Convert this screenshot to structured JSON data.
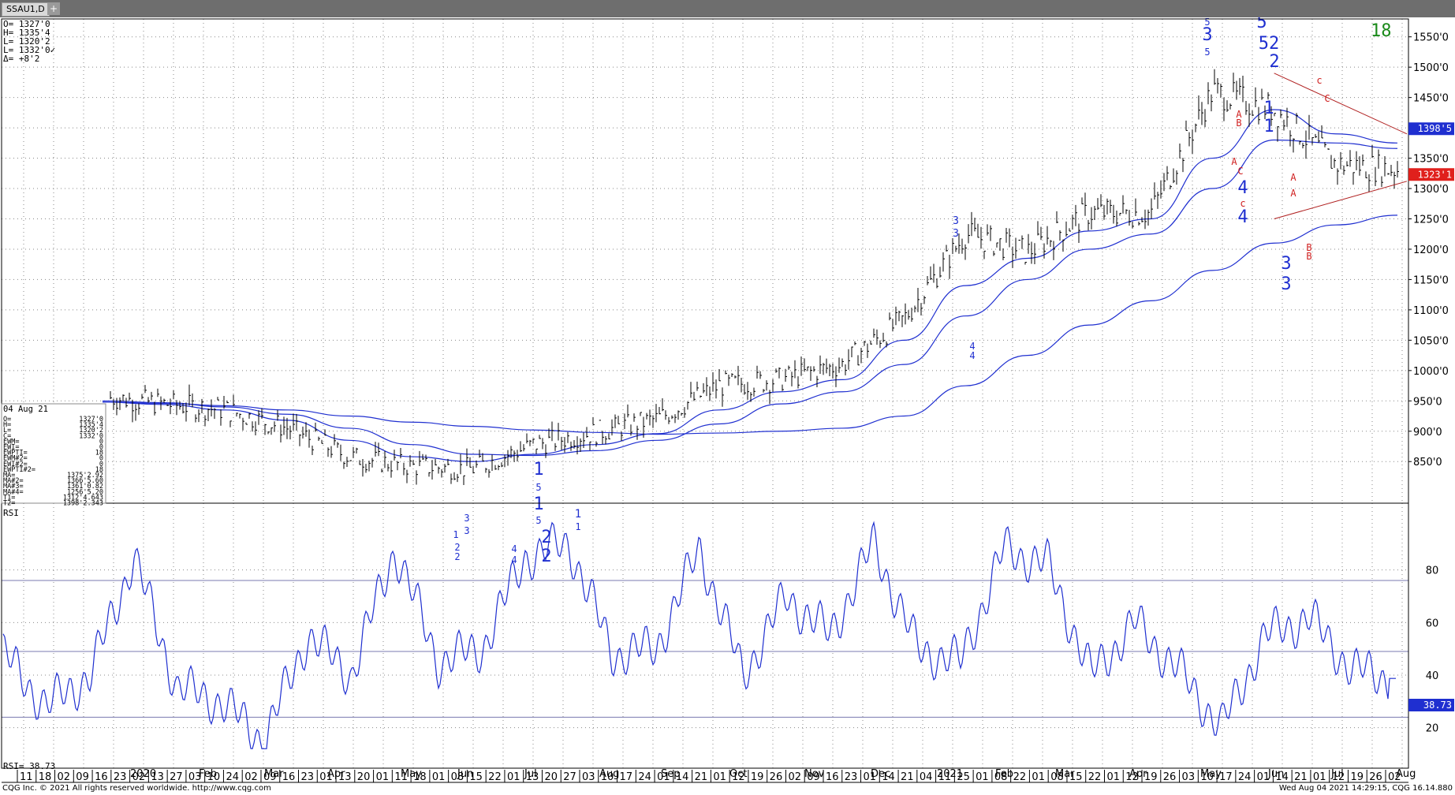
{
  "tab": {
    "label": "SSAU1,D",
    "add": "+"
  },
  "quote": [
    "O=  1327'0",
    "H=  1335'4",
    "L=  1320'2",
    "L=  1332'0✓",
    "Δ=    +8'2"
  ],
  "counter": "18",
  "databox": {
    "date": "04 Aug 21",
    "rows": [
      [
        "O=",
        "1327'0"
      ],
      [
        "H=",
        "1335'4"
      ],
      [
        "L=",
        "1320'2"
      ],
      [
        "C=",
        "1332'0"
      ],
      [
        "EWM=",
        "0"
      ],
      [
        "EWI=",
        "0"
      ],
      [
        "EWPTI=",
        "18"
      ],
      [
        "EWM#2=",
        "0"
      ],
      [
        "EWI#2=",
        "0"
      ],
      [
        "EWPTI#2=",
        "18"
      ],
      [
        "MA=",
        "1375'2.92"
      ],
      [
        "MA#2=",
        "1366'5.60"
      ],
      [
        "MA#3=",
        "1361'0.82"
      ],
      [
        "MA#4=",
        "1256'5.20"
      ],
      [
        "T1=",
        "1312'4.643"
      ],
      [
        "T2=",
        "1398'2.343"
      ]
    ]
  },
  "badges": [
    {
      "text": "1398'5",
      "price": 1398.5,
      "color": "#1f2fd0"
    },
    {
      "text": "1323'1",
      "price": 1323.1,
      "color": "#e0201c"
    }
  ],
  "rsi_label": "RSI",
  "rsi_value_label": "RSI=   38.73",
  "rsi_badge": "38.73",
  "footer": {
    "left": "CQG Inc. © 2021 All rights reserved worldwide. http://www.cqg.com",
    "right": "Wed Aug 04 2021 14:29:15, CQG 16.14.880"
  },
  "colors": {
    "ma": "#1f2fd0",
    "trend": "#b02020",
    "wave": "#1f2fd0",
    "abc": "#d02020",
    "counter": "#1a8a1a"
  },
  "chart_data": [
    {
      "type": "line",
      "title": "",
      "xlabel": "",
      "ylabel": "",
      "ylim": [
        800,
        1560
      ],
      "yticks": [
        850,
        900,
        950,
        1000,
        1050,
        1100,
        1150,
        1200,
        1250,
        1300,
        1350,
        1400,
        1450,
        1500,
        1550
      ],
      "ytick_labels": [
        "850'0",
        "900'0",
        "950'0",
        "1000'0",
        "1050'0",
        "1100'0",
        "1150'0",
        "1200'0",
        "1250'0",
        "1300'0",
        "1350'0",
        "1400'0",
        "1450'0",
        "1500'0",
        "1550'0"
      ],
      "x_month_labels": [
        "2020",
        "Feb",
        "Mar",
        "Apr",
        "May",
        "Jun",
        "Jul",
        "Aug",
        "Sep",
        "Oct",
        "Nov",
        "Dec",
        "2021",
        "Feb",
        "Mar",
        "Apr",
        "May",
        "Jun",
        "Jul",
        "Aug"
      ],
      "x_day_labels": [
        "11",
        "18",
        "02",
        "09",
        "16",
        "23",
        "02",
        "13",
        "27",
        "03",
        "10",
        "24",
        "02",
        "09",
        "16",
        "23",
        "01",
        "13",
        "20",
        "01",
        "11",
        "18",
        "01",
        "08",
        "15",
        "22",
        "01",
        "13",
        "20",
        "27",
        "03",
        "10",
        "17",
        "24",
        "01",
        "14",
        "21",
        "01",
        "12",
        "19",
        "26",
        "02",
        "09",
        "16",
        "23",
        "01",
        "14",
        "21",
        "04",
        "11",
        "25",
        "01",
        "08",
        "22",
        "01",
        "08",
        "15",
        "22",
        "01",
        "12",
        "19",
        "26",
        "03",
        "10",
        "17",
        "24",
        "01",
        "14",
        "21",
        "01",
        "12",
        "19",
        "26",
        "02"
      ],
      "x": [
        "2019-11",
        "2019-12",
        "2020-01",
        "2020-02",
        "2020-03",
        "2020-04",
        "2020-05",
        "2020-06",
        "2020-07",
        "2020-08",
        "2020-09",
        "2020-10",
        "2020-11",
        "2020-12",
        "2021-01",
        "2021-02",
        "2021-03",
        "2021-04",
        "2021-05",
        "2021-06",
        "2021-07",
        "2021-08"
      ],
      "series": [
        {
          "values": [
            957,
            945,
            935,
            905,
            858,
            842,
            838,
            878,
            898,
            920,
            975,
            985,
            1010,
            1085,
            1225,
            1195,
            1260,
            1260,
            1460,
            1430,
            1340,
            1332
          ]
        },
        {
          "values": [
            948,
            944,
            935,
            918,
            885,
            858,
            850,
            862,
            878,
            896,
            935,
            965,
            985,
            1050,
            1140,
            1185,
            1230,
            1250,
            1350,
            1430,
            1390,
            1375
          ]
        },
        {
          "values": [
            950,
            947,
            940,
            928,
            905,
            878,
            862,
            860,
            868,
            885,
            912,
            945,
            965,
            1010,
            1090,
            1150,
            1200,
            1225,
            1300,
            1380,
            1375,
            1366
          ]
        },
        {
          "values": [
            948,
            946,
            942,
            935,
            925,
            915,
            908,
            902,
            898,
            895,
            897,
            900,
            905,
            925,
            975,
            1025,
            1075,
            1115,
            1165,
            1210,
            1240,
            1256
          ]
        }
      ],
      "trendlines": [
        {
          "from": [
            "2021-06",
            1490
          ],
          "to": [
            "2021-08",
            1390
          ]
        },
        {
          "from": [
            "2021-06",
            1250
          ],
          "to": [
            "2021-08",
            1312
          ]
        }
      ],
      "wave_labels": [
        "1",
        "5",
        "1",
        "5",
        "1",
        "1",
        "2",
        "2",
        "3",
        "3",
        "1",
        "2",
        "2",
        "4",
        "4",
        "3",
        "3",
        "4",
        "4",
        "5",
        "3",
        "5",
        "5",
        "52",
        "2",
        "1",
        "1",
        "3",
        "3",
        "4",
        "4",
        "c",
        "c",
        "A",
        "B",
        "A",
        "C",
        "A",
        "A",
        "B",
        "B",
        "C"
      ]
    },
    {
      "type": "line",
      "title": "RSI",
      "ylim": [
        10,
        100
      ],
      "yticks": [
        20,
        40,
        60,
        80
      ],
      "reference_lines": [
        76,
        49,
        24
      ],
      "series": [
        {
          "name": "RSI",
          "values": [
            48,
            28,
            40,
            85,
            35,
            30,
            15,
            55,
            40,
            88,
            45,
            50,
            85,
            90,
            48,
            50,
            88,
            40,
            70,
            55,
            90,
            50,
            45,
            88,
            82,
            40,
            60,
            42,
            20,
            55,
            62,
            42,
            38.73
          ]
        }
      ]
    }
  ]
}
